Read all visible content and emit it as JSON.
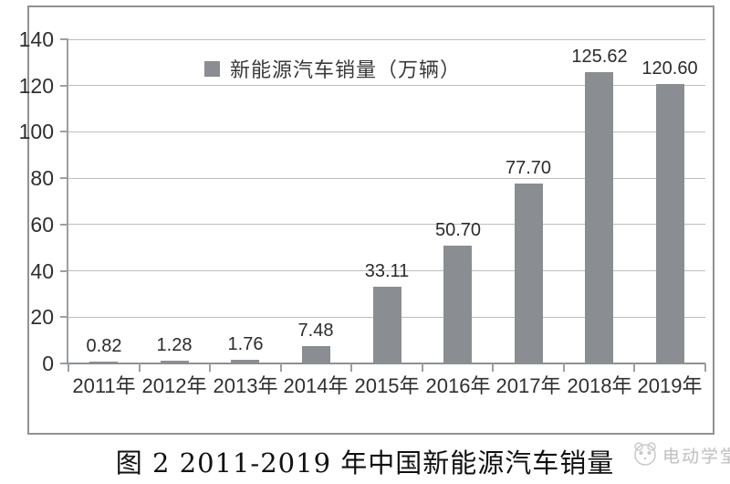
{
  "chart_data": {
    "type": "bar",
    "legend": "新能源汽车销量（万辆）",
    "categories": [
      "2011年",
      "2012年",
      "2013年",
      "2014年",
      "2015年",
      "2016年",
      "2017年",
      "2018年",
      "2019年"
    ],
    "values": [
      0.82,
      1.28,
      1.76,
      7.48,
      33.11,
      50.7,
      77.7,
      125.62,
      120.6
    ],
    "value_labels": [
      "0.82",
      "1.28",
      "1.76",
      "7.48",
      "33.11",
      "50.70",
      "77.70",
      "125.62",
      "120.60"
    ],
    "ylim": [
      0,
      140
    ],
    "yticks": [
      0,
      20,
      40,
      60,
      80,
      100,
      120,
      140
    ],
    "ytick_labels": [
      "0",
      "20",
      "40",
      "60",
      "80",
      "100",
      "120",
      "140"
    ],
    "grid": true,
    "legend_position": "top-center",
    "bar_color": "#8a8d91"
  },
  "caption": "图 2  2011-2019 年中国新能源汽车销量",
  "watermark": {
    "text": "电动学堂",
    "icon": "panda-logo-icon"
  },
  "colors": {
    "bar": "#8a8d91",
    "gridline": "#bdbdbd",
    "axis": "#9aa0a4",
    "border": "#8f9296",
    "label_text": "#2f2f2f",
    "watermark_text": "#c3c3c3"
  }
}
